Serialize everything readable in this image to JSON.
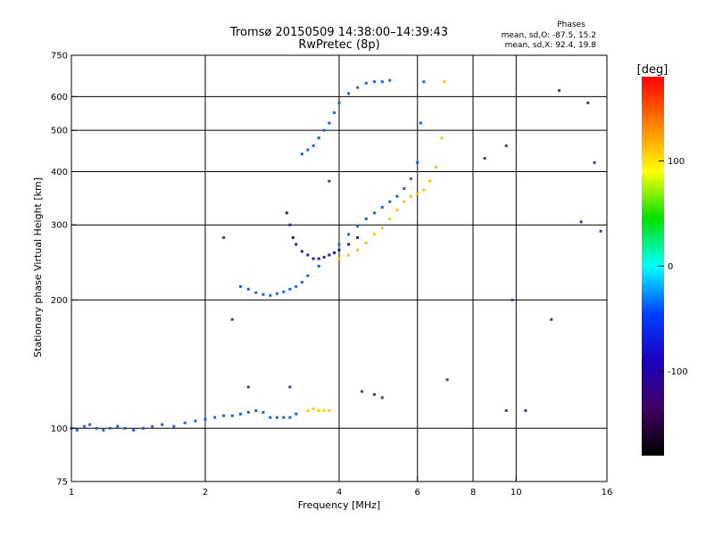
{
  "chart_data": {
    "type": "scatter",
    "title": "Tromsø 20150509 14:38:00–14:39:43",
    "subtitle": "RwPretec (8p)",
    "xlabel": "Frequency [MHz]",
    "ylabel": "Stationary phase Virtual Height [km]",
    "x_scale": "log",
    "y_scale": "log",
    "xlim": [
      1,
      16
    ],
    "ylim": [
      75,
      750
    ],
    "x_ticks": [
      1,
      2,
      4,
      6,
      8,
      10,
      16
    ],
    "y_ticks": [
      75,
      100,
      200,
      300,
      400,
      500,
      600,
      750
    ],
    "grid": true,
    "legend": {
      "title": "Phases",
      "lines": [
        "mean, sd,O: -87.5, 15.2",
        "mean, sd,X:  92.4, 19.8"
      ]
    },
    "colorbar": {
      "label": "[deg]",
      "range": [
        -180,
        180
      ],
      "ticks": [
        100,
        0,
        -100
      ],
      "colors": [
        "#ff0000",
        "#ff8000",
        "#ffff00",
        "#00e000",
        "#00ffff",
        "#0040ff",
        "#1a00c0",
        "#400060",
        "#000000"
      ]
    },
    "series": [
      {
        "name": "",
        "color": "#1e5fe0",
        "x": [
          1.0,
          1.03,
          1.07,
          1.1,
          1.14,
          1.18,
          1.22,
          1.27,
          1.32,
          1.38,
          1.45,
          1.52,
          1.6,
          1.7,
          1.8,
          1.9,
          2.0,
          2.1,
          2.2,
          2.3,
          2.4,
          2.5,
          2.6,
          2.7,
          2.8,
          2.9,
          3.0,
          3.1,
          3.2
        ],
        "y": [
          100,
          99,
          101,
          102,
          100,
          99,
          100,
          101,
          100,
          99,
          100,
          101,
          102,
          101,
          103,
          104,
          105,
          106,
          107,
          107,
          108,
          109,
          110,
          109,
          106,
          106,
          106,
          106,
          108
        ]
      },
      {
        "name": "",
        "color": "#ffd000",
        "x": [
          3.4,
          3.5,
          3.6,
          3.7,
          3.8
        ],
        "y": [
          110,
          111,
          110,
          110,
          110
        ]
      },
      {
        "name": "",
        "color": "#1e5fe0",
        "x": [
          2.4,
          2.5,
          2.6,
          2.7,
          2.8,
          2.9,
          3.0,
          3.1,
          3.2,
          3.3,
          3.4,
          3.6,
          3.8,
          4.0,
          4.2,
          4.4,
          4.6,
          4.8,
          5.0,
          5.2,
          5.4,
          5.6,
          5.8,
          6.0,
          6.1,
          6.2
        ],
        "y": [
          215,
          212,
          208,
          206,
          205,
          207,
          209,
          212,
          215,
          220,
          228,
          240,
          255,
          270,
          285,
          298,
          310,
          320,
          330,
          340,
          350,
          365,
          385,
          420,
          520,
          650
        ]
      },
      {
        "name": "",
        "color": "#2020b0",
        "x": [
          3.05,
          3.1,
          3.15,
          3.2,
          3.3,
          3.4,
          3.5,
          3.6,
          3.7,
          3.8,
          3.9,
          4.0,
          4.2,
          4.4
        ],
        "y": [
          320,
          300,
          280,
          270,
          260,
          255,
          250,
          250,
          252,
          255,
          258,
          262,
          270,
          280
        ]
      },
      {
        "name": "",
        "color": "#1e5fe0",
        "x": [
          3.3,
          3.4,
          3.5,
          3.6,
          3.7,
          3.8,
          3.9,
          4.0,
          4.2,
          4.4,
          4.6,
          4.8,
          5.0,
          5.2
        ],
        "y": [
          440,
          450,
          460,
          480,
          500,
          520,
          550,
          580,
          610,
          630,
          645,
          650,
          650,
          655
        ]
      },
      {
        "name": "",
        "color": "#f0c800",
        "x": [
          4.0,
          4.2,
          4.4,
          4.6,
          4.8,
          5.0,
          5.2,
          5.4,
          5.6,
          5.8,
          6.0,
          6.2,
          6.4,
          6.6,
          6.8,
          6.9
        ],
        "y": [
          250,
          255,
          262,
          272,
          285,
          295,
          310,
          325,
          340,
          350,
          355,
          362,
          380,
          410,
          480,
          650
        ]
      },
      {
        "name": "",
        "color": "#404080",
        "x": [
          2.3,
          2.5,
          3.1,
          4.5,
          4.8,
          5.0,
          7.0,
          9.5,
          9.8,
          10.5,
          12.0,
          14.0,
          15.0,
          2.2,
          3.8,
          8.5,
          9.5,
          12.5,
          14.5,
          15.5
        ],
        "y": [
          180,
          125,
          125,
          122,
          120,
          118,
          130,
          110,
          200,
          110,
          180,
          305,
          420,
          280,
          380,
          430,
          460,
          620,
          580,
          290
        ]
      }
    ]
  }
}
